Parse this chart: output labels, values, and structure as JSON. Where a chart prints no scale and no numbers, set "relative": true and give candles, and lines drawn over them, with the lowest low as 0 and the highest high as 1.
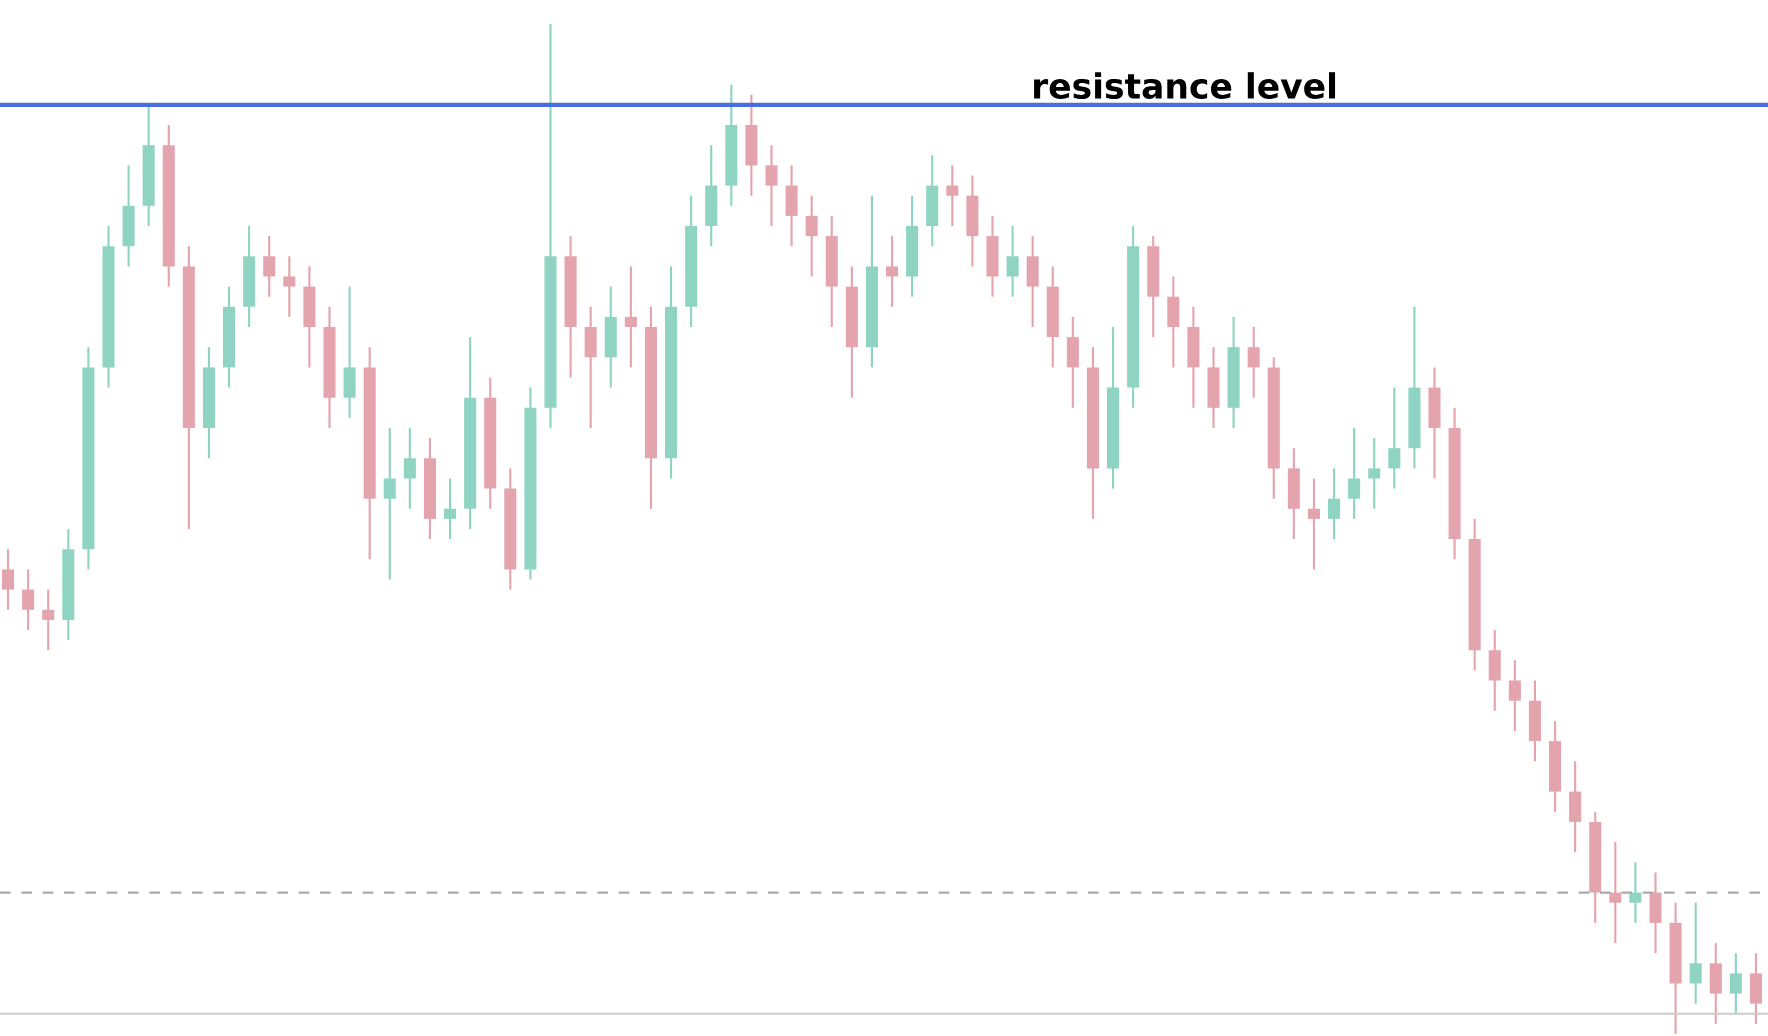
{
  "chart_data": {
    "type": "candlestick",
    "relative": true,
    "categories": [
      null,
      null,
      null,
      null,
      null,
      null,
      null,
      null,
      null,
      null,
      null,
      null,
      null,
      null,
      null,
      null,
      null,
      null,
      null,
      null,
      null,
      null,
      null,
      null,
      null,
      null,
      null,
      null,
      null,
      null,
      null,
      null,
      null,
      null,
      null,
      null,
      null,
      null,
      null,
      null,
      null,
      null,
      null,
      null,
      null,
      null,
      null,
      null,
      null,
      null,
      null,
      null,
      null,
      null,
      null,
      null,
      null,
      null,
      null,
      null,
      null,
      null,
      null,
      null,
      null,
      null,
      null,
      null,
      null,
      null,
      null,
      null,
      null,
      null,
      null,
      null,
      null,
      null,
      null,
      null,
      null,
      null,
      null,
      null,
      null,
      null,
      null,
      null
    ],
    "ohlc": [
      [
        0.46,
        0.48,
        0.42,
        0.44
      ],
      [
        0.44,
        0.46,
        0.4,
        0.42
      ],
      [
        0.42,
        0.44,
        0.38,
        0.41
      ],
      [
        0.41,
        0.5,
        0.39,
        0.48
      ],
      [
        0.48,
        0.68,
        0.46,
        0.66
      ],
      [
        0.66,
        0.8,
        0.64,
        0.78
      ],
      [
        0.78,
        0.86,
        0.76,
        0.82
      ],
      [
        0.82,
        0.92,
        0.8,
        0.88
      ],
      [
        0.88,
        0.9,
        0.74,
        0.76
      ],
      [
        0.76,
        0.78,
        0.5,
        0.6
      ],
      [
        0.6,
        0.68,
        0.57,
        0.66
      ],
      [
        0.66,
        0.74,
        0.64,
        0.72
      ],
      [
        0.72,
        0.8,
        0.7,
        0.77
      ],
      [
        0.77,
        0.79,
        0.73,
        0.75
      ],
      [
        0.75,
        0.77,
        0.71,
        0.74
      ],
      [
        0.74,
        0.76,
        0.66,
        0.7
      ],
      [
        0.7,
        0.72,
        0.6,
        0.63
      ],
      [
        0.63,
        0.74,
        0.61,
        0.66
      ],
      [
        0.66,
        0.68,
        0.47,
        0.53
      ],
      [
        0.53,
        0.6,
        0.45,
        0.55
      ],
      [
        0.55,
        0.6,
        0.52,
        0.57
      ],
      [
        0.57,
        0.59,
        0.49,
        0.51
      ],
      [
        0.51,
        0.55,
        0.49,
        0.52
      ],
      [
        0.52,
        0.69,
        0.5,
        0.63
      ],
      [
        0.63,
        0.65,
        0.52,
        0.54
      ],
      [
        0.54,
        0.56,
        0.44,
        0.46
      ],
      [
        0.46,
        0.64,
        0.45,
        0.62
      ],
      [
        0.62,
        1.0,
        0.6,
        0.77
      ],
      [
        0.77,
        0.79,
        0.65,
        0.7
      ],
      [
        0.7,
        0.72,
        0.6,
        0.67
      ],
      [
        0.67,
        0.74,
        0.64,
        0.71
      ],
      [
        0.71,
        0.76,
        0.66,
        0.7
      ],
      [
        0.7,
        0.72,
        0.52,
        0.57
      ],
      [
        0.57,
        0.76,
        0.55,
        0.72
      ],
      [
        0.72,
        0.83,
        0.7,
        0.8
      ],
      [
        0.8,
        0.88,
        0.78,
        0.84
      ],
      [
        0.84,
        0.94,
        0.82,
        0.9
      ],
      [
        0.9,
        0.93,
        0.83,
        0.86
      ],
      [
        0.86,
        0.88,
        0.8,
        0.84
      ],
      [
        0.84,
        0.86,
        0.78,
        0.81
      ],
      [
        0.81,
        0.83,
        0.75,
        0.79
      ],
      [
        0.79,
        0.81,
        0.7,
        0.74
      ],
      [
        0.74,
        0.76,
        0.63,
        0.68
      ],
      [
        0.68,
        0.83,
        0.66,
        0.76
      ],
      [
        0.76,
        0.79,
        0.72,
        0.75
      ],
      [
        0.75,
        0.83,
        0.73,
        0.8
      ],
      [
        0.8,
        0.87,
        0.78,
        0.84
      ],
      [
        0.84,
        0.86,
        0.8,
        0.83
      ],
      [
        0.83,
        0.85,
        0.76,
        0.79
      ],
      [
        0.79,
        0.81,
        0.73,
        0.75
      ],
      [
        0.75,
        0.8,
        0.73,
        0.77
      ],
      [
        0.77,
        0.79,
        0.7,
        0.74
      ],
      [
        0.74,
        0.76,
        0.66,
        0.69
      ],
      [
        0.69,
        0.71,
        0.62,
        0.66
      ],
      [
        0.66,
        0.68,
        0.51,
        0.56
      ],
      [
        0.56,
        0.7,
        0.54,
        0.64
      ],
      [
        0.64,
        0.8,
        0.62,
        0.78
      ],
      [
        0.78,
        0.79,
        0.69,
        0.73
      ],
      [
        0.73,
        0.75,
        0.66,
        0.7
      ],
      [
        0.7,
        0.72,
        0.62,
        0.66
      ],
      [
        0.66,
        0.68,
        0.6,
        0.62
      ],
      [
        0.62,
        0.71,
        0.6,
        0.68
      ],
      [
        0.68,
        0.7,
        0.63,
        0.66
      ],
      [
        0.66,
        0.67,
        0.53,
        0.56
      ],
      [
        0.56,
        0.58,
        0.49,
        0.52
      ],
      [
        0.52,
        0.55,
        0.46,
        0.51
      ],
      [
        0.51,
        0.56,
        0.49,
        0.53
      ],
      [
        0.53,
        0.6,
        0.51,
        0.55
      ],
      [
        0.55,
        0.59,
        0.52,
        0.56
      ],
      [
        0.56,
        0.64,
        0.54,
        0.58
      ],
      [
        0.58,
        0.72,
        0.56,
        0.64
      ],
      [
        0.64,
        0.66,
        0.55,
        0.6
      ],
      [
        0.6,
        0.62,
        0.47,
        0.49
      ],
      [
        0.49,
        0.51,
        0.36,
        0.38
      ],
      [
        0.38,
        0.4,
        0.32,
        0.35
      ],
      [
        0.35,
        0.37,
        0.3,
        0.33
      ],
      [
        0.33,
        0.35,
        0.27,
        0.29
      ],
      [
        0.29,
        0.31,
        0.22,
        0.24
      ],
      [
        0.24,
        0.27,
        0.18,
        0.21
      ],
      [
        0.21,
        0.22,
        0.11,
        0.14
      ],
      [
        0.14,
        0.19,
        0.09,
        0.13
      ],
      [
        0.13,
        0.17,
        0.11,
        0.14
      ],
      [
        0.14,
        0.16,
        0.08,
        0.11
      ],
      [
        0.11,
        0.13,
        0.0,
        0.05
      ],
      [
        0.05,
        0.13,
        0.03,
        0.07
      ],
      [
        0.07,
        0.09,
        0.01,
        0.04
      ],
      [
        0.04,
        0.08,
        0.02,
        0.06
      ],
      [
        0.06,
        0.08,
        0.01,
        0.03
      ]
    ],
    "colors": [
      "#e4a4ae",
      "#e4a4ae",
      "#e4a4ae",
      "#8fd4c2",
      "#8fd4c2",
      "#8fd4c2",
      "#8fd4c2",
      "#8fd4c2",
      "#e4a4ae",
      "#e4a4ae",
      "#8fd4c2",
      "#8fd4c2",
      "#8fd4c2",
      "#e4a4ae",
      "#e4a4ae",
      "#e4a4ae",
      "#e4a4ae",
      "#8fd4c2",
      "#e4a4ae",
      "#8fd4c2",
      "#8fd4c2",
      "#e4a4ae",
      "#8fd4c2",
      "#8fd4c2",
      "#e4a4ae",
      "#e4a4ae",
      "#8fd4c2",
      "#8fd4c2",
      "#e4a4ae",
      "#e4a4ae",
      "#8fd4c2",
      "#e4a4ae",
      "#e4a4ae",
      "#8fd4c2",
      "#8fd4c2",
      "#8fd4c2",
      "#8fd4c2",
      "#e4a4ae",
      "#e4a4ae",
      "#e4a4ae",
      "#e4a4ae",
      "#e4a4ae",
      "#e4a4ae",
      "#8fd4c2",
      "#e4a4ae",
      "#8fd4c2",
      "#8fd4c2",
      "#e4a4ae",
      "#e4a4ae",
      "#e4a4ae",
      "#8fd4c2",
      "#e4a4ae",
      "#e4a4ae",
      "#e4a4ae",
      "#e4a4ae",
      "#8fd4c2",
      "#8fd4c2",
      "#e4a4ae",
      "#e4a4ae",
      "#e4a4ae",
      "#e4a4ae",
      "#8fd4c2",
      "#e4a4ae",
      "#e4a4ae",
      "#e4a4ae",
      "#e4a4ae",
      "#8fd4c2",
      "#8fd4c2",
      "#8fd4c2",
      "#8fd4c2",
      "#8fd4c2",
      "#e4a4ae",
      "#e4a4ae",
      "#e4a4ae",
      "#e4a4ae",
      "#e4a4ae",
      "#e4a4ae",
      "#e4a4ae",
      "#e4a4ae",
      "#e4a4ae",
      "#e4a4ae",
      "#8fd4c2",
      "#e4a4ae",
      "#e4a4ae",
      "#8fd4c2",
      "#e4a4ae",
      "#8fd4c2",
      "#e4a4ae"
    ],
    "ref_lines": [
      {
        "axis": "y",
        "value": 0.92,
        "label": "resistance level",
        "color": "#4a6ee0",
        "line_style": "solid"
      },
      {
        "axis": "y",
        "value": 0.14,
        "color": "#aaaaaa",
        "line_style": "dashed"
      },
      {
        "axis": "y",
        "value": 0.02,
        "color": "#cccccc",
        "line_style": "solid"
      }
    ]
  }
}
